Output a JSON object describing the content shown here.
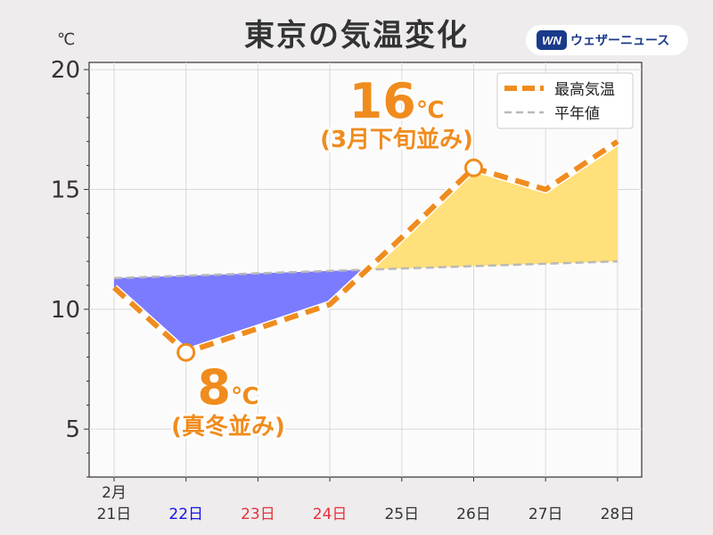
{
  "title": "東京の気温変化",
  "logo": {
    "text": "ウェザーニュース",
    "icon": "wn-logo-icon"
  },
  "colors": {
    "max": "#f08c1e",
    "normal": "#b9b9b9",
    "warm": "#ffe07a",
    "cold": "#7b7bff",
    "sat": "#1414e6",
    "sun": "#e6323c"
  },
  "chart_data": {
    "type": "line",
    "unit": "℃",
    "ylim": [
      3,
      20.3
    ],
    "yticks": [
      "5",
      "10",
      "15",
      "20"
    ],
    "grid": true,
    "legend_position": "top-right",
    "categories": [
      "2月\n21日",
      "22日",
      "23日",
      "24日",
      "25日",
      "26日",
      "27日",
      "28日"
    ],
    "category_colors": [
      "#333333",
      "#1414e6",
      "#e6323c",
      "#e6323c",
      "#333333",
      "#333333",
      "#333333",
      "#333333"
    ],
    "series": [
      {
        "name": "最高気温",
        "style": "dashed-thick",
        "values": [
          10.9,
          8.2,
          9.2,
          10.2,
          13.0,
          15.9,
          15.0,
          17.0
        ]
      },
      {
        "name": "平年値",
        "style": "dashed-thin",
        "values": [
          11.3,
          11.4,
          11.5,
          11.6,
          11.7,
          11.8,
          11.9,
          12.0
        ]
      }
    ],
    "annotations": [
      {
        "value": "16",
        "unit": "℃",
        "note": "(3月下旬並み)",
        "index": 5
      },
      {
        "value": "8",
        "unit": "℃",
        "note": "(真冬並み)",
        "index": 1
      }
    ]
  }
}
